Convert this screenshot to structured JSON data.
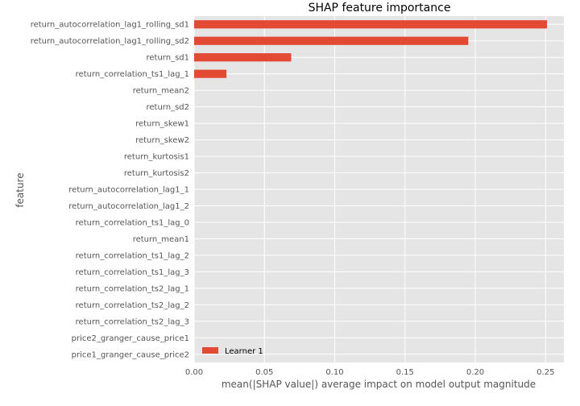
{
  "chart_data": {
    "type": "bar",
    "orientation": "horizontal",
    "title": "SHAP feature importance",
    "xlabel": "mean(|SHAP value|) average impact on model output magnitude",
    "ylabel": "feature",
    "xlim": [
      0,
      0.263
    ],
    "xticks": [
      0.0,
      0.05,
      0.1,
      0.15,
      0.2,
      0.25
    ],
    "xtick_labels": [
      "0.00",
      "0.05",
      "0.10",
      "0.15",
      "0.20",
      "0.25"
    ],
    "grid": true,
    "legend": {
      "placement": "bottom-left",
      "entries": [
        "Learner 1"
      ]
    },
    "colors": {
      "bar": "#E24A33",
      "background": "#E5E5E5",
      "grid": "#FFFFFF"
    },
    "categories": [
      "return_autocorrelation_lag1_rolling_sd1",
      "return_autocorrelation_lag1_rolling_sd2",
      "return_sd1",
      "return_correlation_ts1_lag_1",
      "return_mean2",
      "return_sd2",
      "return_skew1",
      "return_skew2",
      "return_kurtosis1",
      "return_kurtosis2",
      "return_autocorrelation_lag1_1",
      "return_autocorrelation_lag1_2",
      "return_correlation_ts1_lag_0",
      "return_mean1",
      "return_correlation_ts1_lag_2",
      "return_correlation_ts1_lag_3",
      "return_correlation_ts2_lag_1",
      "return_correlation_ts2_lag_2",
      "return_correlation_ts2_lag_3",
      "price2_granger_cause_price1",
      "price1_granger_cause_price2"
    ],
    "series": [
      {
        "name": "Learner 1",
        "values": [
          0.251,
          0.195,
          0.069,
          0.023,
          0,
          0,
          0,
          0,
          0,
          0,
          0,
          0,
          0,
          0,
          0,
          0,
          0,
          0,
          0,
          0,
          0
        ]
      }
    ]
  }
}
